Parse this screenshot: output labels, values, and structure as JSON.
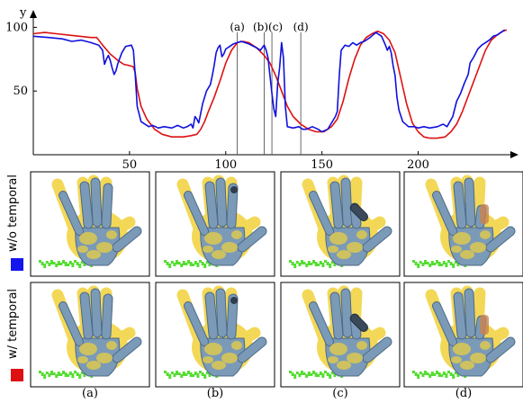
{
  "chart_data": {
    "type": "line",
    "ylabel": "y",
    "xlabel": "",
    "xlim": [
      0,
      247
    ],
    "ylim": [
      0,
      113
    ],
    "x_ticks": [
      50,
      100,
      150,
      200
    ],
    "y_ticks": [
      50,
      100
    ],
    "markers": [
      {
        "label": "(a)",
        "x": 106
      },
      {
        "label": "(b)",
        "x": 120
      },
      {
        "label": "(c)",
        "x": 124
      },
      {
        "label": "(d)",
        "x": 139
      }
    ],
    "series": [
      {
        "color": "#1010dd",
        "points": [
          [
            0,
            93
          ],
          [
            8,
            92
          ],
          [
            15,
            91
          ],
          [
            20,
            89
          ],
          [
            25,
            90
          ],
          [
            30,
            88
          ],
          [
            34,
            86
          ],
          [
            36,
            82
          ],
          [
            37,
            71
          ],
          [
            38,
            75
          ],
          [
            39,
            78
          ],
          [
            40,
            74
          ],
          [
            41,
            68
          ],
          [
            42,
            63
          ],
          [
            43,
            66
          ],
          [
            44,
            72
          ],
          [
            46,
            80
          ],
          [
            48,
            85
          ],
          [
            51,
            86
          ],
          [
            52,
            82
          ],
          [
            53,
            62
          ],
          [
            54,
            38
          ],
          [
            56,
            26
          ],
          [
            60,
            22
          ],
          [
            62,
            23
          ],
          [
            65,
            21
          ],
          [
            68,
            22
          ],
          [
            72,
            21
          ],
          [
            75,
            23
          ],
          [
            78,
            21
          ],
          [
            80,
            22
          ],
          [
            82,
            24
          ],
          [
            83,
            21
          ],
          [
            84,
            30
          ],
          [
            85,
            28
          ],
          [
            86,
            25
          ],
          [
            88,
            40
          ],
          [
            90,
            50
          ],
          [
            92,
            55
          ],
          [
            93,
            62
          ],
          [
            94,
            70
          ],
          [
            95,
            80
          ],
          [
            96,
            84
          ],
          [
            97,
            86
          ],
          [
            98,
            77
          ],
          [
            99,
            79
          ],
          [
            100,
            83
          ],
          [
            104,
            87
          ],
          [
            108,
            89
          ],
          [
            112,
            87
          ],
          [
            116,
            84
          ],
          [
            118,
            82
          ],
          [
            120,
            86
          ],
          [
            121,
            82
          ],
          [
            122,
            76
          ],
          [
            123,
            62
          ],
          [
            124,
            48
          ],
          [
            125,
            36
          ],
          [
            126,
            30
          ],
          [
            127,
            56
          ],
          [
            128,
            68
          ],
          [
            129,
            88
          ],
          [
            130,
            76
          ],
          [
            131,
            38
          ],
          [
            132,
            22
          ],
          [
            135,
            21
          ],
          [
            138,
            22
          ],
          [
            140,
            20
          ],
          [
            142,
            20
          ],
          [
            145,
            22
          ],
          [
            148,
            20
          ],
          [
            150,
            18
          ],
          [
            153,
            20
          ],
          [
            155,
            25
          ],
          [
            157,
            30
          ],
          [
            158,
            34
          ],
          [
            159,
            62
          ],
          [
            160,
            82
          ],
          [
            162,
            86
          ],
          [
            164,
            85
          ],
          [
            166,
            88
          ],
          [
            168,
            86
          ],
          [
            170,
            88
          ],
          [
            172,
            89
          ],
          [
            175,
            92
          ],
          [
            178,
            96
          ],
          [
            181,
            93
          ],
          [
            183,
            86
          ],
          [
            184,
            82
          ],
          [
            185,
            85
          ],
          [
            186,
            80
          ],
          [
            187,
            70
          ],
          [
            188,
            62
          ],
          [
            189,
            45
          ],
          [
            190,
            35
          ],
          [
            192,
            26
          ],
          [
            195,
            22
          ],
          [
            198,
            22
          ],
          [
            200,
            21
          ],
          [
            203,
            22
          ],
          [
            206,
            21
          ],
          [
            210,
            22
          ],
          [
            213,
            24
          ],
          [
            215,
            22
          ],
          [
            218,
            30
          ],
          [
            220,
            42
          ],
          [
            222,
            48
          ],
          [
            224,
            56
          ],
          [
            226,
            63
          ],
          [
            227,
            72
          ],
          [
            229,
            77
          ],
          [
            231,
            83
          ],
          [
            233,
            86
          ],
          [
            235,
            88
          ],
          [
            237,
            90
          ],
          [
            239,
            93
          ],
          [
            241,
            94
          ],
          [
            243,
            96
          ],
          [
            245,
            98
          ]
        ]
      },
      {
        "color": "#dd1111",
        "points": [
          [
            0,
            95
          ],
          [
            6,
            96
          ],
          [
            12,
            95
          ],
          [
            18,
            94
          ],
          [
            24,
            93
          ],
          [
            30,
            92
          ],
          [
            33,
            92
          ],
          [
            36,
            86
          ],
          [
            40,
            79
          ],
          [
            44,
            74
          ],
          [
            47,
            71
          ],
          [
            50,
            70
          ],
          [
            52,
            69
          ],
          [
            53,
            64
          ],
          [
            54,
            52
          ],
          [
            56,
            38
          ],
          [
            59,
            28
          ],
          [
            63,
            20
          ],
          [
            67,
            16
          ],
          [
            72,
            14
          ],
          [
            78,
            14
          ],
          [
            82,
            15
          ],
          [
            85,
            16
          ],
          [
            87,
            20
          ],
          [
            89,
            26
          ],
          [
            91,
            34
          ],
          [
            94,
            45
          ],
          [
            97,
            58
          ],
          [
            100,
            72
          ],
          [
            103,
            82
          ],
          [
            106,
            88
          ],
          [
            109,
            89
          ],
          [
            112,
            88
          ],
          [
            116,
            84
          ],
          [
            120,
            78
          ],
          [
            123,
            72
          ],
          [
            126,
            62
          ],
          [
            129,
            50
          ],
          [
            132,
            38
          ],
          [
            135,
            30
          ],
          [
            139,
            24
          ],
          [
            143,
            20
          ],
          [
            147,
            18
          ],
          [
            151,
            18
          ],
          [
            155,
            22
          ],
          [
            158,
            28
          ],
          [
            161,
            42
          ],
          [
            164,
            60
          ],
          [
            167,
            75
          ],
          [
            170,
            86
          ],
          [
            173,
            92
          ],
          [
            176,
            95
          ],
          [
            179,
            97
          ],
          [
            182,
            95
          ],
          [
            185,
            90
          ],
          [
            188,
            80
          ],
          [
            191,
            60
          ],
          [
            194,
            40
          ],
          [
            197,
            25
          ],
          [
            200,
            18
          ],
          [
            203,
            14
          ],
          [
            206,
            13
          ],
          [
            210,
            13
          ],
          [
            214,
            14
          ],
          [
            217,
            18
          ],
          [
            220,
            24
          ],
          [
            223,
            34
          ],
          [
            226,
            46
          ],
          [
            229,
            58
          ],
          [
            232,
            70
          ],
          [
            235,
            82
          ],
          [
            238,
            90
          ],
          [
            241,
            94
          ],
          [
            244,
            97
          ],
          [
            246,
            98
          ]
        ]
      }
    ]
  },
  "rows": [
    {
      "label": "w/o temporal",
      "swatch_color": "#1515ee"
    },
    {
      "label": "w/ temporal",
      "swatch_color": "#dd1111"
    }
  ],
  "column_captions": [
    "(a)",
    "(b)",
    "(c)",
    "(d)"
  ],
  "colors": {
    "hand_model": "#7a9ab8",
    "point_cloud": "#f2d23a",
    "background_points": "#55dd33"
  }
}
